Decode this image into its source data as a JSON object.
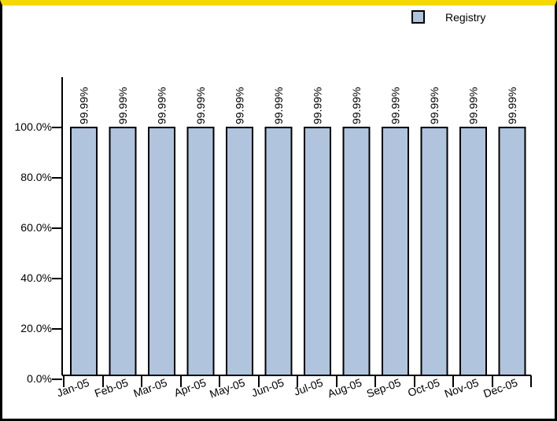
{
  "chart_data": {
    "type": "bar",
    "title": "",
    "xlabel": "",
    "ylabel": "",
    "categories": [
      "Jan-05",
      "Feb-05",
      "Mar-05",
      "Apr-05",
      "May-05",
      "Jun-05",
      "Jul-05",
      "Aug-05",
      "Sep-05",
      "Oct-05",
      "Nov-05",
      "Dec-05"
    ],
    "series": [
      {
        "name": "Registry",
        "values": [
          99.99,
          99.99,
          99.99,
          99.99,
          99.99,
          99.99,
          99.99,
          99.99,
          99.99,
          99.99,
          99.99,
          99.99
        ],
        "data_labels": [
          "99.99%",
          "99.99%",
          "99.99%",
          "99.99%",
          "99.99%",
          "99.99%",
          "99.99%",
          "99.99%",
          "99.99%",
          "99.99%",
          "99.99%",
          "99.99%"
        ],
        "color": "#b0c4de"
      }
    ],
    "yticks": [
      0,
      20,
      40,
      60,
      80,
      100
    ],
    "ytick_labels": [
      "0.0%",
      "20.0%",
      "40.0%",
      "60.0%",
      "80.0%",
      "100.0%"
    ],
    "ylim": [
      0,
      100
    ],
    "grid": false,
    "legend_position": "top-right"
  },
  "colors": {
    "bar_fill": "#b0c4de",
    "bar_stroke": "#000000",
    "frame_top": "#f5d800",
    "frame": "#000000"
  }
}
